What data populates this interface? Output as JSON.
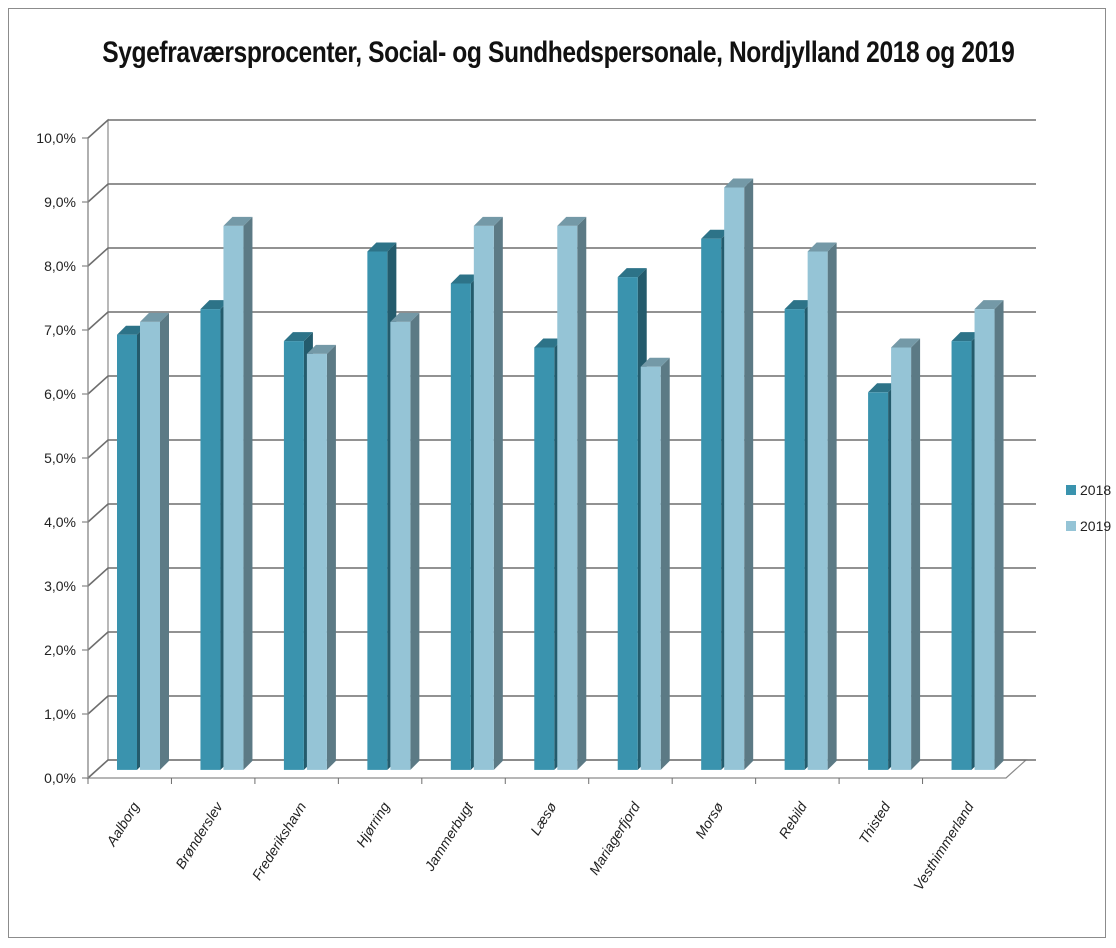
{
  "chart_data": {
    "type": "bar",
    "title": "Sygefraværsprocenter, Social- og Sundhedspersonale, Nordjylland 2018 og 2019",
    "categories": [
      "Aalborg",
      "Brønderslev",
      "Frederikshavn",
      "Hjørring",
      "Jammerbugt",
      "Læsø",
      "Mariagerfjord",
      "Morsø",
      "Rebild",
      "Thisted",
      "Vesthimmerland"
    ],
    "series": [
      {
        "name": "2018",
        "color": "#3A93AE",
        "values": [
          6.8,
          7.2,
          6.7,
          8.1,
          7.6,
          6.6,
          7.7,
          8.3,
          7.2,
          5.9,
          6.7
        ]
      },
      {
        "name": "2019",
        "color": "#95C4D6",
        "values": [
          7.0,
          8.5,
          6.5,
          7.0,
          8.5,
          8.5,
          6.3,
          9.1,
          8.1,
          6.6,
          7.2
        ]
      }
    ],
    "yticks": [
      "0,0%",
      "1,0%",
      "2,0%",
      "3,0%",
      "4,0%",
      "5,0%",
      "6,0%",
      "7,0%",
      "8,0%",
      "9,0%",
      "10,0%"
    ],
    "ylim": [
      0,
      10
    ],
    "grid": true,
    "legend": "right",
    "style": "3d-clustered-column"
  }
}
